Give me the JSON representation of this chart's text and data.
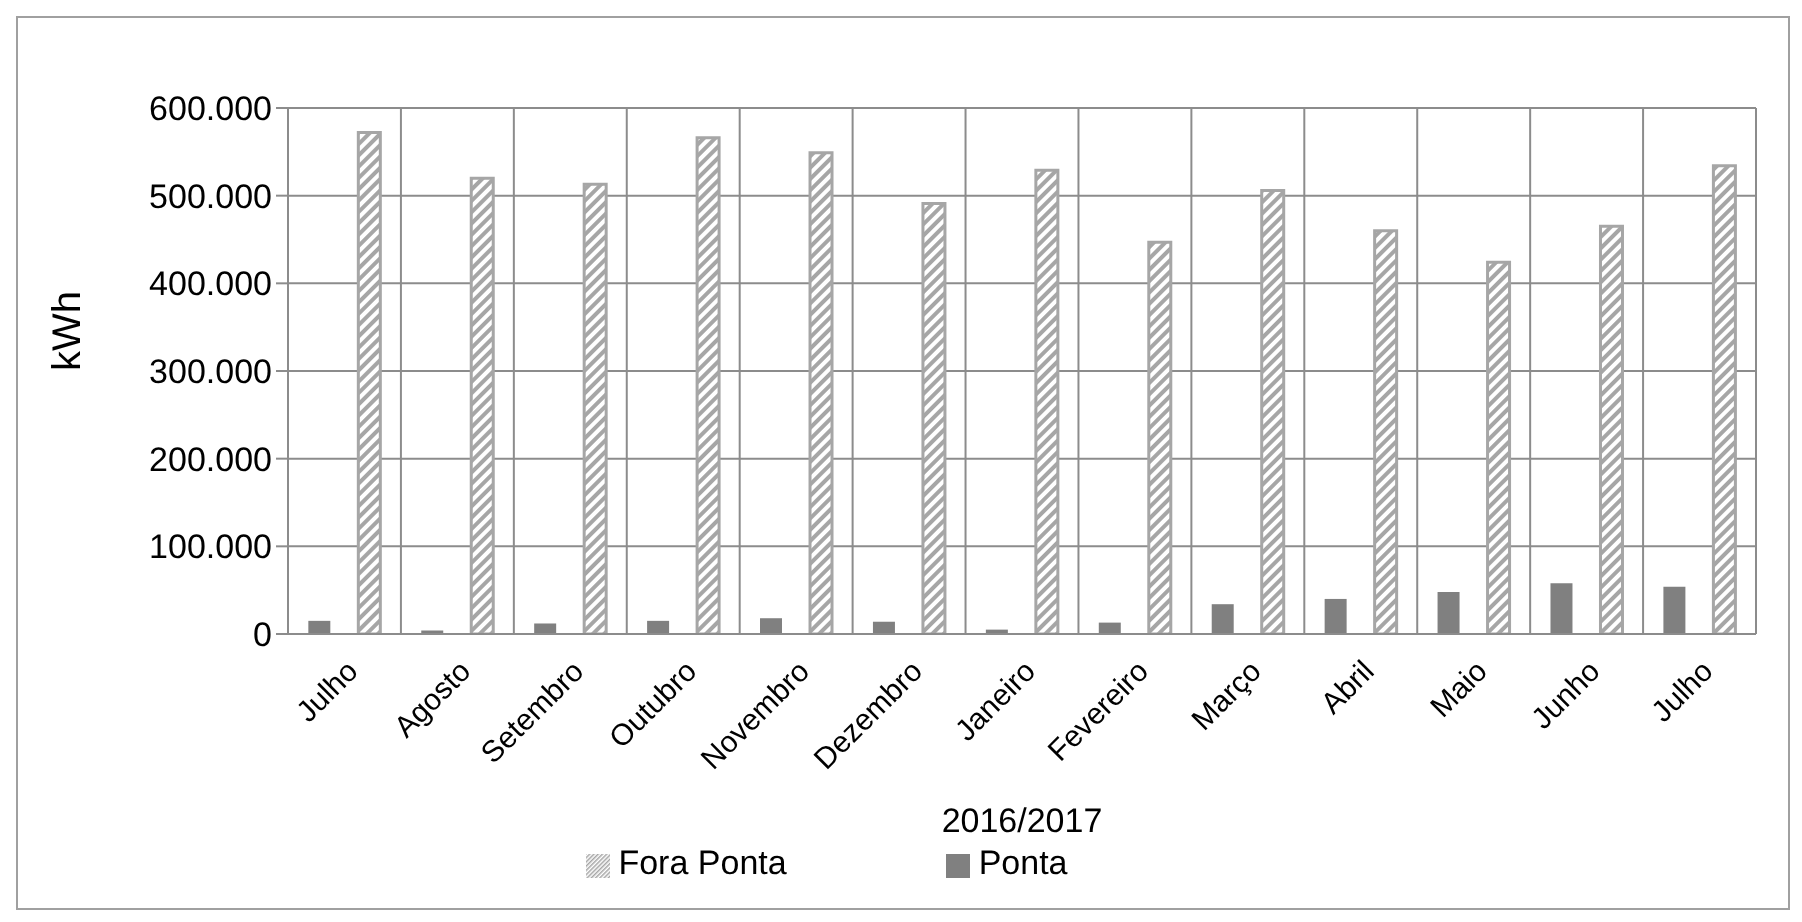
{
  "chart_data": {
    "type": "bar",
    "xlabel": "2016/2017",
    "ylabel": "kWh",
    "categories": [
      "Julho",
      "Agosto",
      "Setembro",
      "Outubro",
      "Novembro",
      "Dezembro",
      "Janeiro",
      "Fevereiro",
      "Março",
      "Abril",
      "Maio",
      "Junho",
      "Julho"
    ],
    "series": [
      {
        "name": "Ponta",
        "color": "#808080",
        "values": [
          15000,
          4000,
          12000,
          15000,
          18000,
          14000,
          5000,
          13000,
          34000,
          40000,
          48000,
          58000,
          54000
        ]
      },
      {
        "name": "Fora Ponta",
        "color": "#a6a6a6",
        "values": [
          572000,
          520000,
          513000,
          566000,
          549000,
          491000,
          529000,
          447000,
          506000,
          460000,
          424000,
          465000,
          534000
        ]
      }
    ],
    "ylim": [
      0,
      600000
    ],
    "yticks": [
      0,
      {
        "value": 100000,
        "label": "100.000"
      },
      {
        "value": 200000,
        "label": "200.000"
      },
      {
        "value": 300000,
        "label": "300.000"
      },
      {
        "value": 400000,
        "label": "400.000"
      },
      {
        "value": 500000,
        "label": "500.000"
      },
      {
        "value": 600000,
        "label": "600.000"
      }
    ],
    "grid": true,
    "legend": "bottom"
  }
}
